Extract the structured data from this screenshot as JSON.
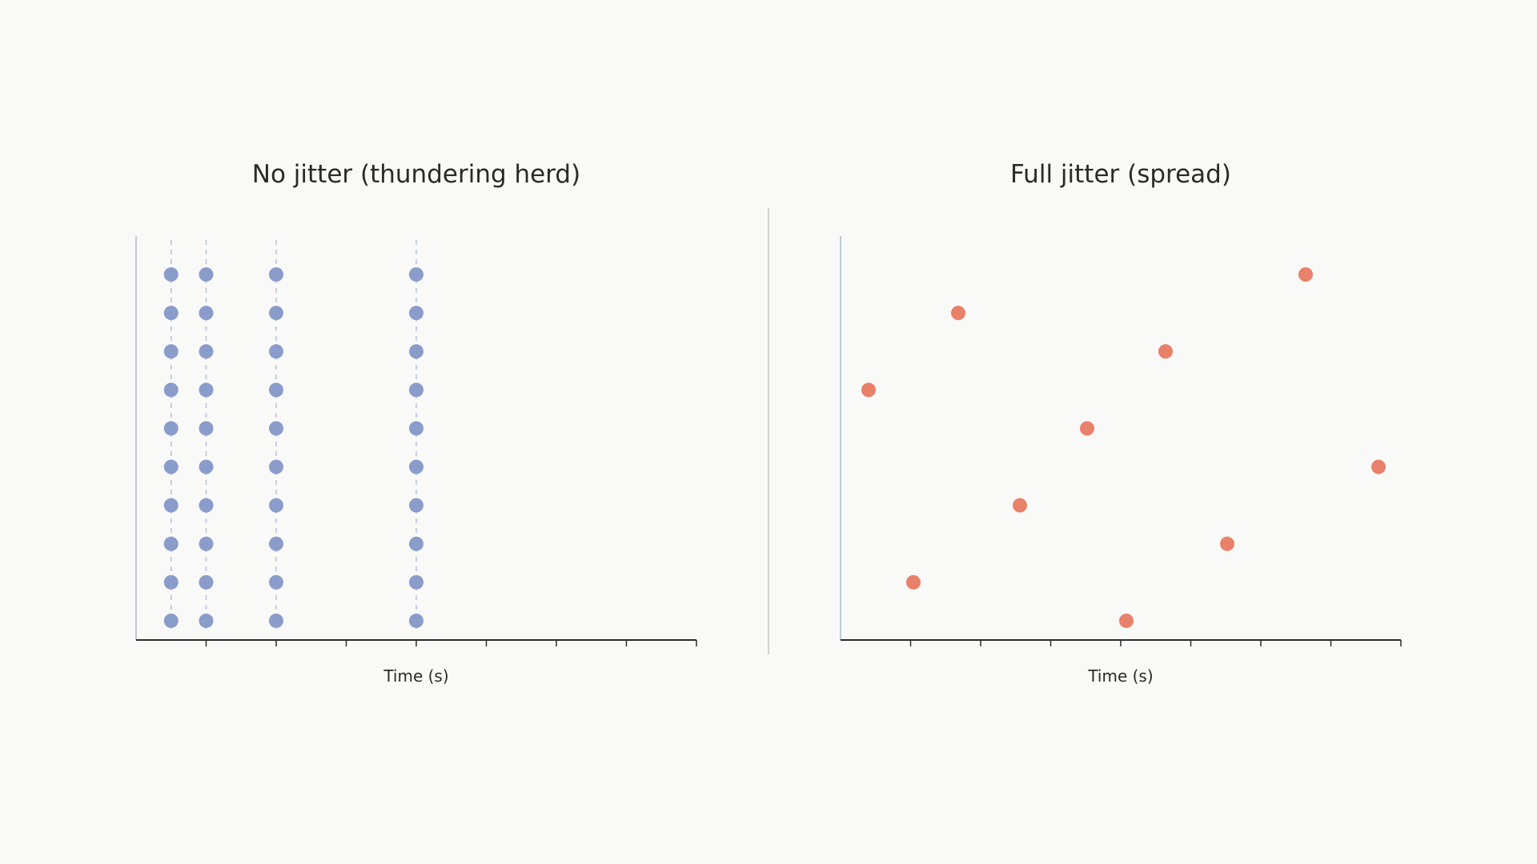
{
  "colors": {
    "background": "#f9f9f7",
    "text": "#2a2a2a",
    "no_jitter_points": "#8a9cc9",
    "no_jitter_guides": "#b5c0dd",
    "full_jitter_points": "#e8806a",
    "y_axis_line": "#b0b8d6",
    "x_axis_line": "#2a2a2a",
    "divider": "#c4c4c4"
  },
  "chart_data": [
    {
      "type": "scatter",
      "title": "No jitter (thundering herd)",
      "xlabel": "Time (s)",
      "ylabel": "",
      "xlim": [
        0,
        8
      ],
      "ylim": [
        0.5,
        11
      ],
      "x_ticks": [
        1,
        2,
        3,
        4,
        5,
        6,
        7,
        8
      ],
      "x_tick_labels": [],
      "grid": false,
      "guide_lines_x": [
        0.5,
        1,
        2,
        4
      ],
      "legend": "none",
      "series": [
        {
          "color": "#8a9cc9",
          "points": [
            [
              0.5,
              10
            ],
            [
              1,
              10
            ],
            [
              2,
              10
            ],
            [
              4,
              10
            ],
            [
              0.5,
              9
            ],
            [
              1,
              9
            ],
            [
              2,
              9
            ],
            [
              4,
              9
            ],
            [
              0.5,
              8
            ],
            [
              1,
              8
            ],
            [
              2,
              8
            ],
            [
              4,
              8
            ],
            [
              0.5,
              7
            ],
            [
              1,
              7
            ],
            [
              2,
              7
            ],
            [
              4,
              7
            ],
            [
              0.5,
              6
            ],
            [
              1,
              6
            ],
            [
              2,
              6
            ],
            [
              4,
              6
            ],
            [
              0.5,
              5
            ],
            [
              1,
              5
            ],
            [
              2,
              5
            ],
            [
              4,
              5
            ],
            [
              0.5,
              4
            ],
            [
              1,
              4
            ],
            [
              2,
              4
            ],
            [
              4,
              4
            ],
            [
              0.5,
              3
            ],
            [
              1,
              3
            ],
            [
              2,
              3
            ],
            [
              4,
              3
            ],
            [
              0.5,
              2
            ],
            [
              1,
              2
            ],
            [
              2,
              2
            ],
            [
              4,
              2
            ],
            [
              0.5,
              1
            ],
            [
              1,
              1
            ],
            [
              2,
              1
            ],
            [
              4,
              1
            ]
          ]
        }
      ]
    },
    {
      "type": "scatter",
      "title": "Full jitter (spread)",
      "xlabel": "Time (s)",
      "ylabel": "",
      "xlim": [
        0,
        8
      ],
      "ylim": [
        0.5,
        11
      ],
      "x_ticks": [
        1,
        2,
        3,
        4,
        5,
        6,
        7,
        8
      ],
      "x_tick_labels": [],
      "grid": false,
      "legend": "none",
      "series": [
        {
          "color": "#e8806a",
          "points": [
            [
              6.64,
              10
            ],
            [
              1.68,
              9
            ],
            [
              4.64,
              8
            ],
            [
              0.4,
              7
            ],
            [
              3.52,
              6
            ],
            [
              7.68,
              5
            ],
            [
              2.56,
              4
            ],
            [
              5.52,
              3
            ],
            [
              1.04,
              2
            ],
            [
              4.08,
              1
            ]
          ]
        }
      ]
    }
  ]
}
